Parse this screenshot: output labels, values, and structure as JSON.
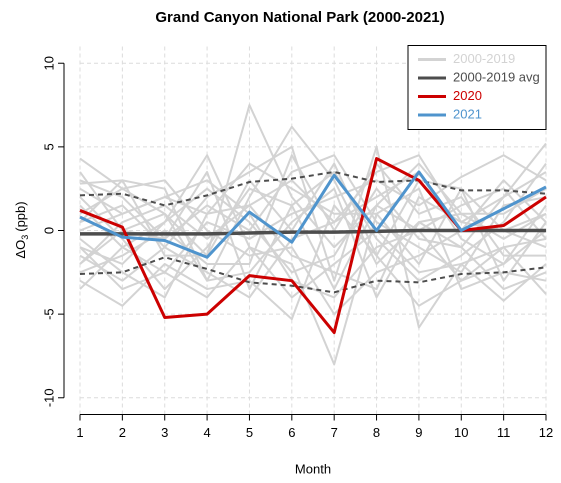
{
  "chart_data": {
    "type": "line",
    "title": "Grand Canyon National Park (2000-2021)",
    "x_label": "Month",
    "y_label": {
      "text": "ΔO",
      "subscript": "3",
      "suffix": "(ppb)"
    },
    "x": [
      1,
      2,
      3,
      4,
      5,
      6,
      7,
      8,
      9,
      10,
      11,
      12
    ],
    "xlim": [
      1,
      12
    ],
    "xticks": [
      1,
      2,
      3,
      4,
      5,
      6,
      7,
      8,
      9,
      10,
      11,
      12
    ],
    "ylim": [
      -11,
      11
    ],
    "yticks": [
      -10,
      -5,
      0,
      5,
      10
    ],
    "grid": true,
    "legend": "topright",
    "series": [
      {
        "name": "2000-2019",
        "color": "#d3d3d3",
        "values": [
          [
            4.3,
            2.5,
            1.0,
            -1.5,
            7.5,
            2.0,
            -1.0,
            1.5,
            4.0,
            1.0,
            -0.5,
            1.0
          ],
          [
            2.8,
            3.0,
            2.5,
            -3.0,
            2.0,
            6.2,
            3.0,
            -2.0,
            0.5,
            -1.0,
            2.0,
            5.2
          ],
          [
            -1.0,
            -2.0,
            0.5,
            4.5,
            -1.0,
            -2.0,
            -8.0,
            1.0,
            -2.0,
            2.5,
            -3.0,
            0.5
          ],
          [
            0.5,
            1.5,
            -1.0,
            2.0,
            3.5,
            5.0,
            -3.0,
            5.0,
            -5.8,
            -2.0,
            -4.2,
            -2.0
          ],
          [
            -3.0,
            -4.5,
            -2.0,
            -3.5,
            -3.0,
            -5.3,
            1.5,
            -1.5,
            -4.5,
            -3.0,
            -1.0,
            -3.8
          ],
          [
            1.5,
            -1.0,
            -2.5,
            0.5,
            -0.5,
            1.0,
            2.0,
            3.0,
            1.5,
            3.2,
            4.5,
            3.0
          ],
          [
            -2.0,
            0.5,
            1.5,
            -0.5,
            1.5,
            -1.5,
            -2.5,
            -3.5,
            2.0,
            0.5,
            0.0,
            -1.0
          ],
          [
            3.0,
            2.0,
            -0.5,
            1.5,
            0.0,
            3.5,
            4.5,
            0.5,
            -1.0,
            -2.5,
            1.5,
            2.0
          ],
          [
            -1.5,
            -3.0,
            -1.0,
            -2.5,
            -4.0,
            -0.5,
            0.5,
            2.0,
            3.5,
            -0.5,
            -2.0,
            1.5
          ],
          [
            0.0,
            1.0,
            2.0,
            3.0,
            1.0,
            -3.0,
            -4.0,
            -1.0,
            0.0,
            1.5,
            2.5,
            -0.5
          ],
          [
            2.0,
            -0.5,
            -3.5,
            -1.0,
            2.5,
            1.5,
            3.5,
            -0.5,
            -3.0,
            -1.5,
            0.5,
            4.0
          ],
          [
            -2.5,
            -1.5,
            0.0,
            -2.0,
            -2.0,
            4.5,
            0.0,
            4.0,
            1.0,
            2.0,
            -1.5,
            -1.5
          ],
          [
            1.0,
            2.5,
            3.0,
            0.0,
            -1.5,
            -1.0,
            -5.0,
            -2.5,
            -1.5,
            0.0,
            3.0,
            0.5
          ],
          [
            -0.5,
            -2.5,
            -4.0,
            1.0,
            4.0,
            2.5,
            1.0,
            1.0,
            2.5,
            -3.5,
            -2.5,
            -3.0
          ],
          [
            3.5,
            0.0,
            1.0,
            -3.0,
            -2.5,
            0.5,
            2.5,
            -4.0,
            0.5,
            1.0,
            1.0,
            2.5
          ],
          [
            -3.5,
            -1.0,
            0.5,
            2.5,
            0.5,
            -2.5,
            -1.5,
            2.5,
            -0.5,
            -1.0,
            -3.5,
            -2.5
          ],
          [
            0.5,
            3.0,
            -1.5,
            -1.5,
            3.0,
            0.0,
            4.0,
            -1.5,
            3.0,
            2.5,
            0.0,
            1.0
          ],
          [
            -1.0,
            -3.5,
            -2.5,
            -4.0,
            -1.0,
            -4.0,
            -2.0,
            0.0,
            -2.5,
            -2.0,
            -1.0,
            -0.5
          ],
          [
            2.5,
            1.0,
            2.0,
            1.0,
            1.5,
            3.0,
            0.5,
            3.5,
            4.5,
            0.5,
            2.0,
            3.5
          ],
          [
            -2.0,
            0.0,
            -0.5,
            3.5,
            -3.5,
            1.5,
            -3.5,
            1.5,
            0.0,
            -3.0,
            -2.0,
            0.0
          ]
        ]
      },
      {
        "name": "2000-2019 avg",
        "color": "#4d4d4d",
        "values": [
          -0.2,
          -0.2,
          -0.2,
          -0.2,
          -0.15,
          -0.1,
          -0.1,
          -0.05,
          0,
          0,
          0,
          0
        ],
        "upper": [
          2.1,
          2.2,
          1.5,
          2.1,
          2.9,
          3.1,
          3.5,
          2.9,
          3.0,
          2.4,
          2.4,
          2.2
        ],
        "lower": [
          -2.6,
          -2.5,
          -1.6,
          -2.3,
          -3.1,
          -3.3,
          -3.7,
          -3.0,
          -3.1,
          -2.6,
          -2.5,
          -2.2
        ]
      },
      {
        "name": "2020",
        "color": "#cc0000",
        "values": [
          1.2,
          0.2,
          -5.2,
          -5.0,
          -2.7,
          -3.0,
          -6.1,
          4.3,
          3.0,
          0,
          0.3,
          2.0
        ]
      },
      {
        "name": "2021",
        "color": "#4f94cd",
        "values": [
          0.8,
          -0.4,
          -0.6,
          -1.6,
          1.1,
          -0.7,
          3.3,
          0,
          3.5,
          0,
          1.3,
          2.6
        ]
      }
    ]
  }
}
